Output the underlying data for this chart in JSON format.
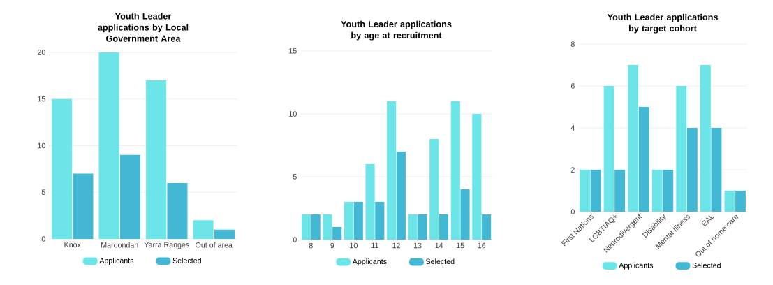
{
  "chart_data": [
    {
      "type": "bar",
      "title": "Youth Leader applications by Local Government Area",
      "categories": [
        "Knox",
        "Maroondah",
        "Yarra Ranges",
        "Out of area"
      ],
      "series": [
        {
          "name": "Applicants",
          "color": "#6ce5e8",
          "values": [
            15,
            20,
            17,
            2
          ]
        },
        {
          "name": "Selected",
          "color": "#42b8d4",
          "values": [
            7,
            9,
            6,
            1
          ]
        }
      ],
      "ylim": [
        0,
        20
      ],
      "yticks": [
        0,
        5,
        10,
        15,
        20
      ],
      "grid": "y",
      "legend": "bottom"
    },
    {
      "type": "bar",
      "title": "Youth Leader applications by age at recruitment",
      "categories": [
        "8",
        "9",
        "10",
        "11",
        "12",
        "13",
        "14",
        "15",
        "16"
      ],
      "series": [
        {
          "name": "Applicants",
          "color": "#6ce5e8",
          "values": [
            2,
            2,
            3,
            6,
            11,
            2,
            8,
            11,
            10
          ]
        },
        {
          "name": "Selected",
          "color": "#42b8d4",
          "values": [
            2,
            1,
            3,
            3,
            7,
            2,
            2,
            4,
            2
          ]
        }
      ],
      "ylim": [
        0,
        15
      ],
      "yticks": [
        0,
        5,
        10,
        15
      ],
      "grid": "y",
      "legend": "bottom"
    },
    {
      "type": "bar",
      "title": "Youth Leader applications by target cohort",
      "categories": [
        "First Nations",
        "LGBTIAQ+",
        "Neurodivergent",
        "Disability",
        "Mental Illness",
        "EAL",
        "Out of home care"
      ],
      "series": [
        {
          "name": "Applicants",
          "color": "#6ce5e8",
          "values": [
            2,
            6,
            7,
            2,
            6,
            7,
            1
          ]
        },
        {
          "name": "Selected",
          "color": "#42b8d4",
          "values": [
            2,
            2,
            5,
            2,
            4,
            4,
            1
          ]
        }
      ],
      "ylim": [
        0,
        8
      ],
      "yticks": [
        0,
        2,
        4,
        6,
        8
      ],
      "grid": "y",
      "legend": "bottom"
    }
  ]
}
